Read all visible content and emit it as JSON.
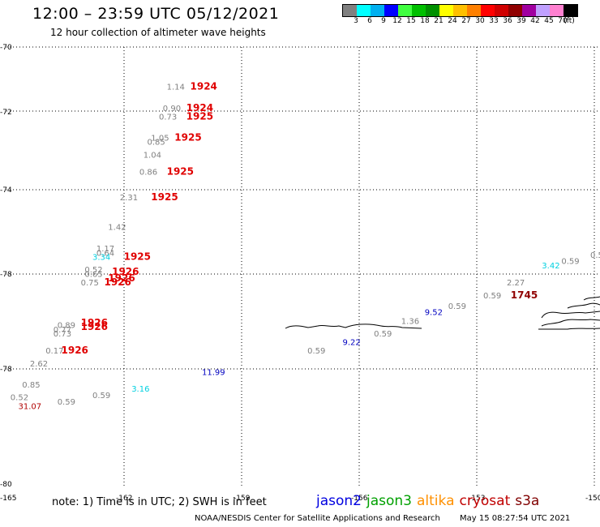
{
  "title": "12:00 – 23:59 UTC 05/12/2021",
  "subtitle": "12 hour collection of altimeter wave heights",
  "colorbar": {
    "colors": [
      "#808080",
      "#00ffff",
      "#00b0f0",
      "#0000ff",
      "#40ff40",
      "#00c000",
      "#009000",
      "#ffff00",
      "#ffc000",
      "#ff8000",
      "#ff0000",
      "#d00000",
      "#900000",
      "#a000a0",
      "#c0a0ff",
      "#ff80d0",
      "#000000"
    ],
    "labels": [
      "3",
      "6",
      "9",
      "12",
      "15",
      "18",
      "21",
      "24",
      "27",
      "30",
      "33",
      "36",
      "39",
      "42",
      "45",
      "70",
      "(ft)"
    ]
  },
  "lat_labels": [
    "-70",
    "-72",
    "-74",
    "-76",
    "-78",
    "-78",
    "-80"
  ],
  "lon_labels": [
    "-165",
    "-162",
    "-159",
    "-156",
    "-153",
    "-150"
  ],
  "observations": [
    {
      "text": "1.14",
      "color": "#808080",
      "lon": -160.9,
      "lat": -71.0
    },
    {
      "text": "1924",
      "color": "#e00000",
      "lon": -160.3,
      "lat": -71.0,
      "bold": true
    },
    {
      "text": "0.90",
      "color": "#808080",
      "lon": -161.0,
      "lat": -71.5
    },
    {
      "text": "1924",
      "color": "#e00000",
      "lon": -160.4,
      "lat": -71.5,
      "bold": true
    },
    {
      "text": "0.73",
      "color": "#808080",
      "lon": -161.1,
      "lat": -71.7
    },
    {
      "text": "1925",
      "color": "#e00000",
      "lon": -160.4,
      "lat": -71.7,
      "bold": true
    },
    {
      "text": "1.05",
      "color": "#808080",
      "lon": -161.3,
      "lat": -72.2
    },
    {
      "text": "0.85",
      "color": "#808080",
      "lon": -161.4,
      "lat": -72.3
    },
    {
      "text": "1925",
      "color": "#e00000",
      "lon": -160.7,
      "lat": -72.2,
      "bold": true
    },
    {
      "text": "1.04",
      "color": "#808080",
      "lon": -161.5,
      "lat": -72.6
    },
    {
      "text": "0.86",
      "color": "#808080",
      "lon": -161.6,
      "lat": -73.0
    },
    {
      "text": "1925",
      "color": "#e00000",
      "lon": -160.9,
      "lat": -73.0,
      "bold": true
    },
    {
      "text": "2.31",
      "color": "#808080",
      "lon": -162.1,
      "lat": -73.6
    },
    {
      "text": "1925",
      "color": "#e00000",
      "lon": -161.3,
      "lat": -73.6,
      "bold": true
    },
    {
      "text": "1.42",
      "color": "#808080",
      "lon": -162.4,
      "lat": -74.3
    },
    {
      "text": "1.17",
      "color": "#808080",
      "lon": -162.7,
      "lat": -74.8
    },
    {
      "text": "0.64",
      "color": "#808080",
      "lon": -162.7,
      "lat": -74.9
    },
    {
      "text": "3.34",
      "color": "#00d0e0",
      "lon": -162.8,
      "lat": -75.0
    },
    {
      "text": "1925",
      "color": "#e00000",
      "lon": -162.0,
      "lat": -75.0,
      "bold": true
    },
    {
      "text": "0.52",
      "color": "#808080",
      "lon": -163.0,
      "lat": -75.3
    },
    {
      "text": "0.65",
      "color": "#808080",
      "lon": -163.0,
      "lat": -75.4
    },
    {
      "text": "0.75",
      "color": "#808080",
      "lon": -163.1,
      "lat": -75.6
    },
    {
      "text": "1926",
      "color": "#e00000",
      "lon": -162.3,
      "lat": -75.35,
      "bold": true
    },
    {
      "text": "1926",
      "color": "#e00000",
      "lon": -162.4,
      "lat": -75.5,
      "bold": true
    },
    {
      "text": "1926",
      "color": "#e00000",
      "lon": -162.5,
      "lat": -75.6,
      "bold": true
    },
    {
      "text": "0.89",
      "color": "#808080",
      "lon": -163.7,
      "lat": -76.6
    },
    {
      "text": "0.77",
      "color": "#808080",
      "lon": -163.8,
      "lat": -76.7
    },
    {
      "text": "0.73",
      "color": "#808080",
      "lon": -163.8,
      "lat": -76.8
    },
    {
      "text": "1926",
      "color": "#e00000",
      "lon": -163.1,
      "lat": -76.55,
      "bold": true
    },
    {
      "text": "1926",
      "color": "#e00000",
      "lon": -163.1,
      "lat": -76.65,
      "bold": true
    },
    {
      "text": "0.17",
      "color": "#808080",
      "lon": -164.0,
      "lat": -77.2
    },
    {
      "text": "1926",
      "color": "#e00000",
      "lon": -163.6,
      "lat": -77.2,
      "bold": true
    },
    {
      "text": "2.62",
      "color": "#808080",
      "lon": -164.4,
      "lat": -77.5
    },
    {
      "text": "0.85",
      "color": "#808080",
      "lon": -164.6,
      "lat": -78.0
    },
    {
      "text": "0.52",
      "color": "#808080",
      "lon": -164.9,
      "lat": -78.3
    },
    {
      "text": "31.07",
      "color": "#b00000",
      "lon": -164.7,
      "lat": -78.5
    },
    {
      "text": "0.59",
      "color": "#808080",
      "lon": -163.7,
      "lat": -78.4
    },
    {
      "text": "0.59",
      "color": "#808080",
      "lon": -162.8,
      "lat": -78.25
    },
    {
      "text": "3.16",
      "color": "#00d0e0",
      "lon": -161.8,
      "lat": -78.1
    },
    {
      "text": "11.99",
      "color": "#0000c0",
      "lon": -160.0,
      "lat": -77.7
    },
    {
      "text": "0.59",
      "color": "#808080",
      "lon": -157.3,
      "lat": -77.2
    },
    {
      "text": "9.22",
      "color": "#0000c0",
      "lon": -156.4,
      "lat": -77.0
    },
    {
      "text": "0.59",
      "color": "#808080",
      "lon": -155.6,
      "lat": -76.8
    },
    {
      "text": "1.36",
      "color": "#808080",
      "lon": -154.9,
      "lat": -76.5
    },
    {
      "text": "9.52",
      "color": "#0000c0",
      "lon": -154.3,
      "lat": -76.3
    },
    {
      "text": "0.59",
      "color": "#808080",
      "lon": -153.7,
      "lat": -76.15
    },
    {
      "text": "0.59",
      "color": "#808080",
      "lon": -152.8,
      "lat": -75.9
    },
    {
      "text": "1745",
      "color": "#900000",
      "lon": -152.1,
      "lat": -75.9,
      "bold": true
    },
    {
      "text": "2.27",
      "color": "#808080",
      "lon": -152.2,
      "lat": -75.6
    },
    {
      "text": "3.42",
      "color": "#00d0e0",
      "lon": -151.3,
      "lat": -75.2
    },
    {
      "text": "0.59",
      "color": "#808080",
      "lon": -150.8,
      "lat": -75.1
    },
    {
      "text": "0.59",
      "color": "#808080",
      "lon": -150.0,
      "lat": -74.95
    }
  ],
  "note": "note: 1) Time is in UTC; 2) SWH is in feet",
  "legend": [
    {
      "name": "jason2",
      "color": "#0000e0"
    },
    {
      "name": "jason3",
      "color": "#00a000"
    },
    {
      "name": "altika",
      "color": "#ff9000"
    },
    {
      "name": "cryosat",
      "color": "#c00000"
    },
    {
      "name": "s3a",
      "color": "#800000"
    }
  ],
  "credit": "NOAA/NESDIS Center for Satellite Applications and Research",
  "timestamp": "May 15 08:27:54 UTC 2021"
}
